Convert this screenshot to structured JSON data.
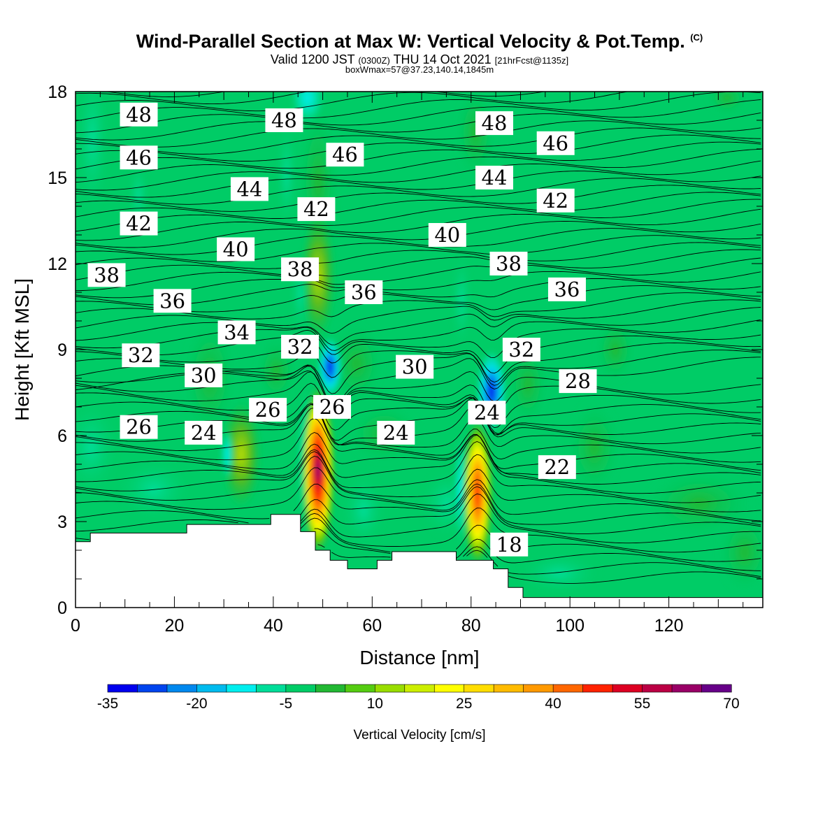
{
  "header": {
    "title": "Wind-Parallel Section at Max W: Vertical Velocity & Pot.Temp.",
    "title_mark": "(C)",
    "valid_a": "Valid 1200 JST",
    "valid_b": "(0300Z)",
    "valid_c": "THU 14 Oct 2021",
    "valid_d": "[21hrFcst@1135z]",
    "boxw": "boxWmax=57@37.23,140.14,1845m"
  },
  "chart_data": {
    "type": "heatmap",
    "xlabel": "Distance [nm]",
    "ylabel": "Height [Kft MSL]",
    "xlim": [
      0,
      139
    ],
    "ylim": [
      0,
      18
    ],
    "x_ticks": [
      "0",
      "20",
      "40",
      "60",
      "80",
      "100",
      "120"
    ],
    "y_ticks": [
      "0",
      "3",
      "6",
      "9",
      "12",
      "15",
      "18"
    ],
    "terrain_kft": [
      [
        0,
        2.3
      ],
      [
        3,
        2.3
      ],
      [
        3,
        2.6
      ],
      [
        22.5,
        2.6
      ],
      [
        22.5,
        2.9
      ],
      [
        39.5,
        2.9
      ],
      [
        39.5,
        3.25
      ],
      [
        45.5,
        3.25
      ],
      [
        45.5,
        2.65
      ],
      [
        48.5,
        2.65
      ],
      [
        48.5,
        2.0
      ],
      [
        51.5,
        2.0
      ],
      [
        51.5,
        1.65
      ],
      [
        55,
        1.65
      ],
      [
        55,
        1.35
      ],
      [
        61,
        1.35
      ],
      [
        61,
        1.65
      ],
      [
        64,
        1.65
      ],
      [
        64,
        1.95
      ],
      [
        77,
        1.95
      ],
      [
        77,
        1.65
      ],
      [
        84.5,
        1.65
      ],
      [
        84.5,
        1.35
      ],
      [
        87.5,
        1.35
      ],
      [
        87.5,
        0.7
      ],
      [
        90.5,
        0.7
      ],
      [
        90.5,
        0.35
      ],
      [
        139,
        0.35
      ]
    ],
    "vertical_velocity_features": [
      {
        "x": 48.6,
        "y": 5.0,
        "max_cm_s": 75,
        "kind": "updraft"
      },
      {
        "x": 81.4,
        "y": 4.2,
        "max_cm_s": 55,
        "kind": "updraft"
      },
      {
        "x": 84.2,
        "y": 7.7,
        "min_cm_s": -35,
        "kind": "downdraft"
      },
      {
        "x": 51.5,
        "y": 7.8,
        "min_cm_s": -20,
        "kind": "downdraft"
      },
      {
        "x": 45.5,
        "y": 4.0,
        "min_cm_s": -15,
        "kind": "downdraft"
      },
      {
        "x": 78.5,
        "y": 4.0,
        "min_cm_s": -15,
        "kind": "downdraft"
      },
      {
        "x": 33.5,
        "y": 5.0,
        "max_cm_s": 20,
        "kind": "updraft"
      },
      {
        "x": 48.0,
        "y": 12.5,
        "max_cm_s": 20,
        "kind": "updraft"
      }
    ],
    "theta_contour_labels": [
      {
        "text": "48",
        "x": 12.8,
        "y": 17.2
      },
      {
        "text": "48",
        "x": 42.2,
        "y": 17.0
      },
      {
        "text": "48",
        "x": 84.7,
        "y": 16.9
      },
      {
        "text": "46",
        "x": 12.8,
        "y": 15.7
      },
      {
        "text": "46",
        "x": 54.5,
        "y": 15.8
      },
      {
        "text": "46",
        "x": 97.1,
        "y": 16.2
      },
      {
        "text": "44",
        "x": 35.2,
        "y": 14.6
      },
      {
        "text": "44",
        "x": 84.7,
        "y": 15.0
      },
      {
        "text": "42",
        "x": 12.8,
        "y": 13.4
      },
      {
        "text": "42",
        "x": 48.7,
        "y": 13.9
      },
      {
        "text": "42",
        "x": 97.1,
        "y": 14.2
      },
      {
        "text": "40",
        "x": 32.4,
        "y": 12.5
      },
      {
        "text": "40",
        "x": 75.2,
        "y": 13.0
      },
      {
        "text": "38",
        "x": 6.3,
        "y": 11.6
      },
      {
        "text": "38",
        "x": 45.4,
        "y": 11.8
      },
      {
        "text": "38",
        "x": 87.6,
        "y": 12.0
      },
      {
        "text": "36",
        "x": 19.6,
        "y": 10.7
      },
      {
        "text": "36",
        "x": 58.3,
        "y": 11.0
      },
      {
        "text": "36",
        "x": 99.4,
        "y": 11.1
      },
      {
        "text": "34",
        "x": 32.6,
        "y": 9.6
      },
      {
        "text": "32",
        "x": 13.2,
        "y": 8.8
      },
      {
        "text": "32",
        "x": 45.4,
        "y": 9.1
      },
      {
        "text": "32",
        "x": 90.2,
        "y": 9.0
      },
      {
        "text": "30",
        "x": 25.9,
        "y": 8.1
      },
      {
        "text": "30",
        "x": 68.6,
        "y": 8.4
      },
      {
        "text": "28",
        "x": 101.6,
        "y": 7.9
      },
      {
        "text": "26",
        "x": 12.8,
        "y": 6.3
      },
      {
        "text": "26",
        "x": 38.9,
        "y": 6.9
      },
      {
        "text": "26",
        "x": 51.9,
        "y": 7.0
      },
      {
        "text": "24",
        "x": 25.9,
        "y": 6.1
      },
      {
        "text": "24",
        "x": 64.8,
        "y": 6.1
      },
      {
        "text": "24",
        "x": 83.2,
        "y": 6.8
      },
      {
        "text": "22",
        "x": 97.4,
        "y": 4.9
      },
      {
        "text": "18",
        "x": 87.7,
        "y": 2.2
      }
    ]
  },
  "colorbar": {
    "label": "Vertical Velocity [cm/s]",
    "tick_labels": [
      "-35",
      "-20",
      "-5",
      "10",
      "25",
      "40",
      "55",
      "70"
    ],
    "colors": [
      "#0000ee",
      "#0044ee",
      "#0088ee",
      "#00bbee",
      "#00eeee",
      "#00dd99",
      "#00cc66",
      "#22b833",
      "#55cc11",
      "#99dd00",
      "#ccee00",
      "#ffff00",
      "#ffdd00",
      "#ffbb00",
      "#ff9900",
      "#ff6600",
      "#ff2200",
      "#dd0022",
      "#bb0044",
      "#990066",
      "#660088"
    ]
  }
}
